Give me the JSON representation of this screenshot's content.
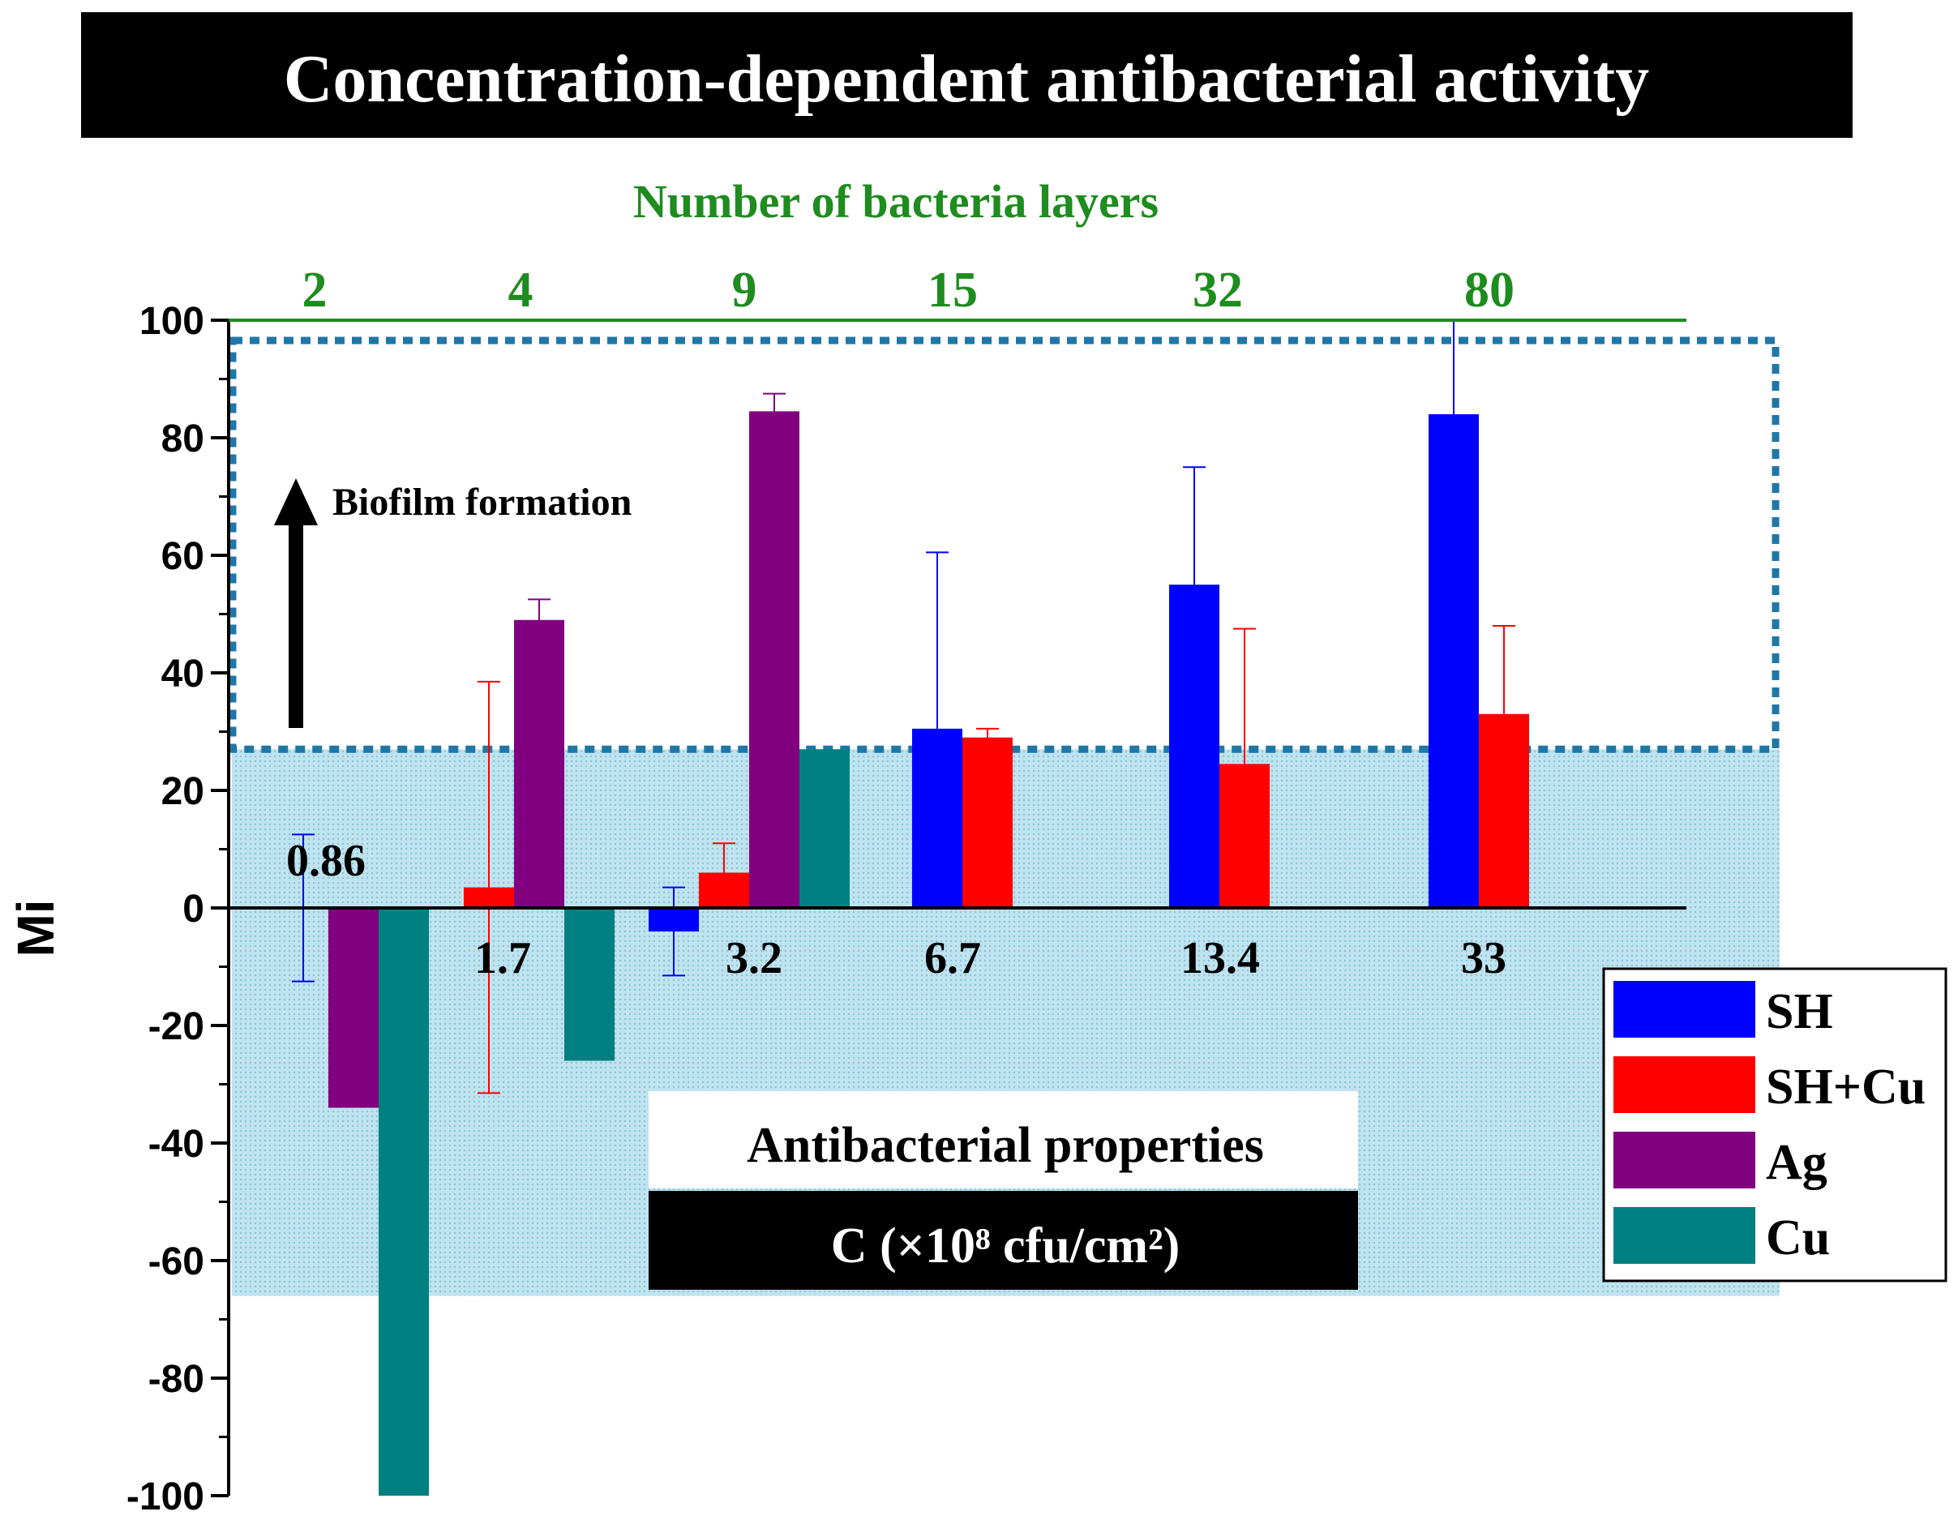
{
  "chart_data": {
    "type": "bar",
    "title": "Concentration-dependent antibacterial activity",
    "top_axis_label": "Number of bacteria layers",
    "top_axis_ticks": [
      "2",
      "4",
      "9",
      "15",
      "32",
      "80"
    ],
    "ylabel": "Mi",
    "xlabel": "C (×10⁸ cfu/cm²)",
    "ylim": [
      -100,
      100
    ],
    "yticks": [
      -100,
      -80,
      -60,
      -40,
      -20,
      0,
      20,
      40,
      60,
      80,
      100
    ],
    "categories": [
      "0.86",
      "1.7",
      "3.2",
      "6.7",
      "13.4",
      "33"
    ],
    "series": [
      {
        "name": "SH",
        "color": "#0000ff",
        "values": [
          0,
          0,
          -4,
          30.5,
          55,
          84
        ],
        "errors": [
          12.5,
          0,
          7.5,
          30,
          20,
          16
        ]
      },
      {
        "name": "SH+Cu",
        "color": "#ff0000",
        "values": [
          null,
          3.5,
          6,
          29,
          24.5,
          33
        ],
        "errors": [
          0,
          35,
          5,
          1.5,
          23,
          15
        ]
      },
      {
        "name": "Ag",
        "color": "#800080",
        "values": [
          -34,
          49,
          84.5,
          null,
          null,
          null
        ],
        "errors": [
          0,
          3.5,
          3,
          0,
          0,
          0
        ]
      },
      {
        "name": "Cu",
        "color": "#008080",
        "values": [
          -100,
          -26,
          27,
          null,
          null,
          null
        ],
        "errors": [
          0,
          0,
          0,
          0,
          0,
          0
        ]
      }
    ],
    "annotations": {
      "biofilm": "Biofilm formation",
      "antibacterial": "Antibacterial properties",
      "threshold_mi": 27,
      "shaded_region_mi": [
        -66,
        27
      ]
    },
    "legend_position": "right"
  }
}
